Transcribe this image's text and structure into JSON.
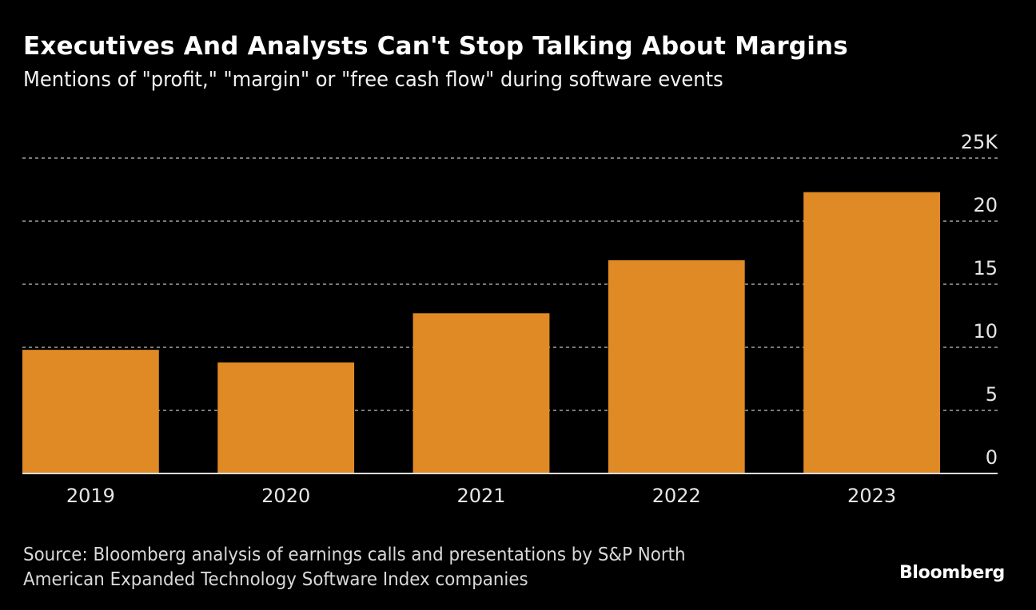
{
  "header": {
    "title": "Executives And Analysts Can't Stop Talking About Margins",
    "subtitle": "Mentions of \"profit,\" \"margin\" or \"free cash flow\" during software events"
  },
  "footer": {
    "source_line1": "Source: Bloomberg analysis of earnings calls and presentations by S&P North",
    "source_line2": "American Expanded Technology Software Index companies",
    "logo": "Bloomberg"
  },
  "colors": {
    "background": "#000000",
    "bar": "#E08A26",
    "grid": "#7a7a7a",
    "baseline": "#dddddd",
    "axis_text": "#e6e6e6"
  },
  "chart_data": {
    "type": "bar",
    "title": "Executives And Analysts Can't Stop Talking About Margins",
    "subtitle": "Mentions of \"profit,\" \"margin\" or \"free cash flow\" during software events",
    "xlabel": "",
    "ylabel": "",
    "categories": [
      "2019",
      "2020",
      "2021",
      "2022",
      "2023"
    ],
    "values": [
      9800,
      8800,
      12700,
      16900,
      22300
    ],
    "ylim": [
      0,
      25000
    ],
    "yticks": [
      0,
      5000,
      10000,
      15000,
      20000,
      25000
    ],
    "ytick_labels": [
      "0",
      "5",
      "10",
      "15",
      "20",
      "25K"
    ],
    "y_axis_side": "right",
    "grid": true,
    "grid_style": "dotted horizontal",
    "legend": "none"
  }
}
